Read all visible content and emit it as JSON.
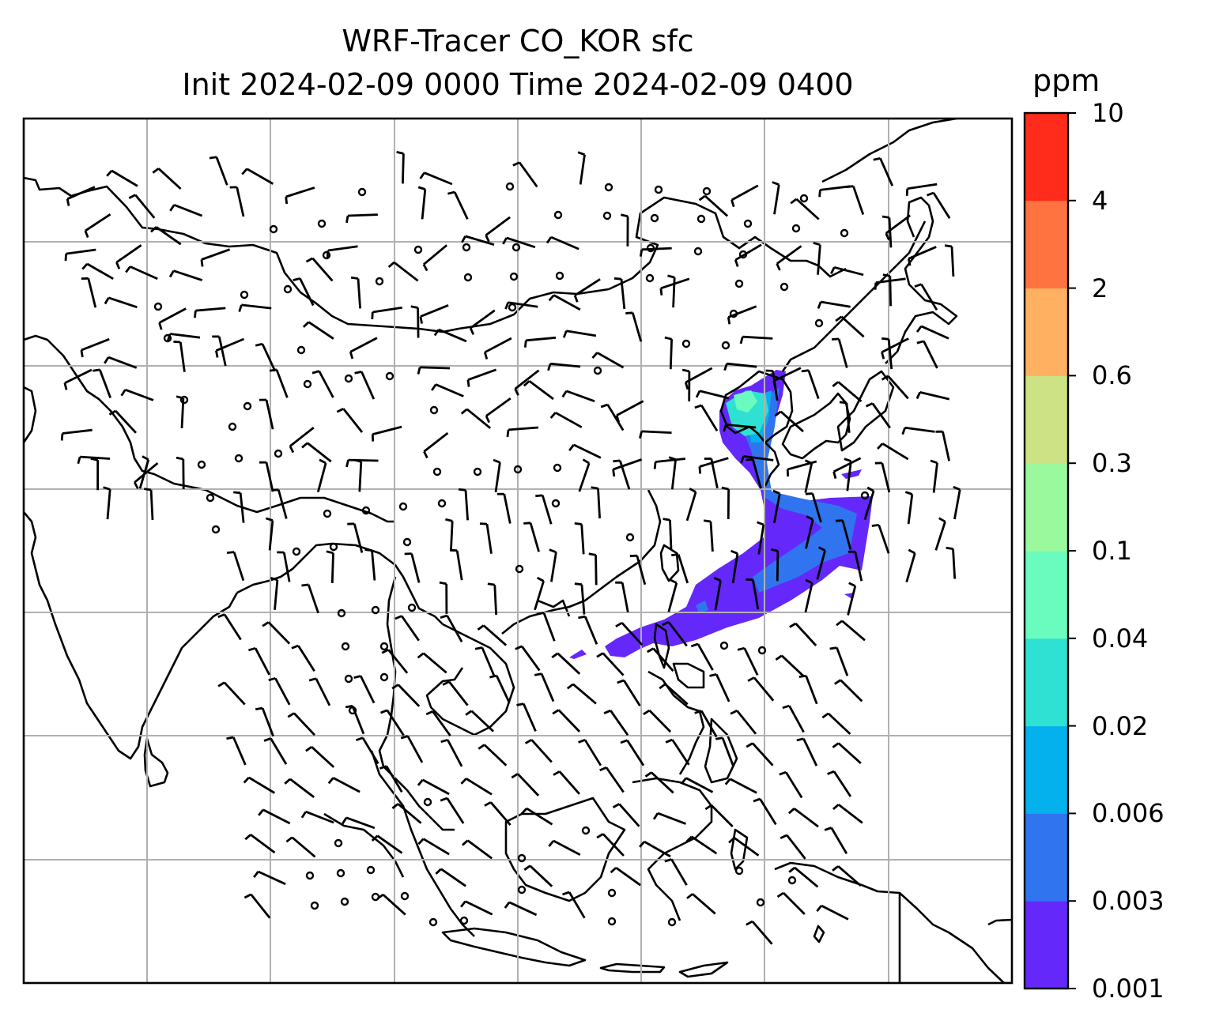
{
  "title": {
    "line1": "WRF-Tracer CO_KOR sfc",
    "line2": "Init 2024-02-09 0000 Time 2024-02-09 0400"
  },
  "colorbar": {
    "unit": "ppm",
    "levels": [
      "0.001",
      "0.003",
      "0.006",
      "0.02",
      "0.04",
      "0.1",
      "0.3",
      "0.6",
      "2",
      "4",
      "10"
    ],
    "colors": [
      "#6528fb",
      "#3075ef",
      "#04b1ec",
      "#2fe1d2",
      "#6afcbe",
      "#9af99d",
      "#cde284",
      "#ffb061",
      "#ff7340",
      "#ff2c1b"
    ]
  },
  "map": {
    "grid": true,
    "content": "surface CO tracer concentration with wind barbs over East and Southeast Asia"
  }
}
